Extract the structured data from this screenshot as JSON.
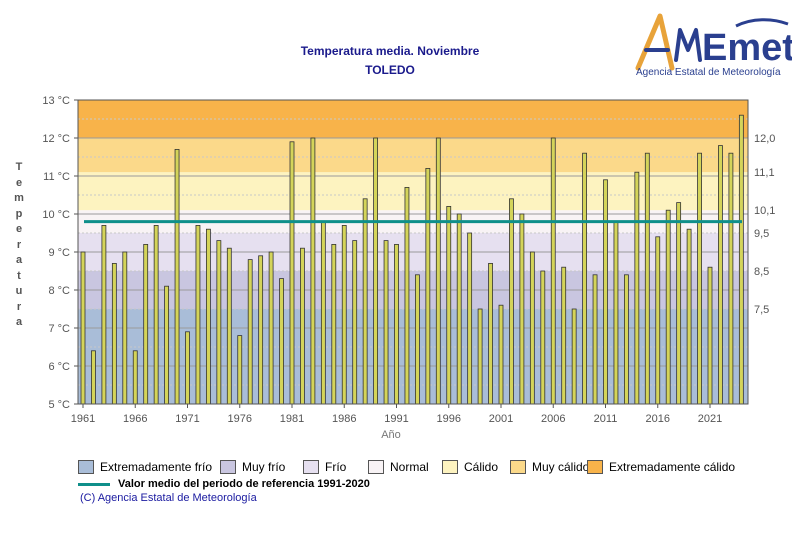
{
  "header": {
    "title": "Temperatura media. Noviembre",
    "subtitle": "TOLEDO"
  },
  "logo": {
    "wordmark": "AEmet",
    "agency_name": "Agencia Estatal de Meteorología"
  },
  "chart_data": {
    "type": "bar",
    "title": "Temperatura media. Noviembre",
    "subtitle": "TOLEDO",
    "xlabel": "Año",
    "ylabel": "Temperatura",
    "ylim": [
      5,
      13
    ],
    "xlim": [
      1961,
      2024
    ],
    "yticks": [
      "5 °C",
      "6 °C",
      "7 °C",
      "8 °C",
      "9 °C",
      "10 °C",
      "11 °C",
      "12 °C",
      "13 °C"
    ],
    "xticks": [
      "1961",
      "1966",
      "1971",
      "1976",
      "1981",
      "1986",
      "1991",
      "1996",
      "2001",
      "2006",
      "2011",
      "2016",
      "2021"
    ],
    "right_axis_ticks": [
      {
        "value": 12.0,
        "label": "12,0"
      },
      {
        "value": 11.1,
        "label": "11,1"
      },
      {
        "value": 10.1,
        "label": "10,1"
      },
      {
        "value": 9.5,
        "label": "9,5"
      },
      {
        "value": 8.5,
        "label": "8,5"
      },
      {
        "value": 7.5,
        "label": "7,5"
      }
    ],
    "categories": [
      1961,
      1962,
      1963,
      1964,
      1965,
      1966,
      1967,
      1968,
      1969,
      1970,
      1971,
      1972,
      1973,
      1974,
      1975,
      1976,
      1977,
      1978,
      1979,
      1980,
      1981,
      1982,
      1983,
      1984,
      1985,
      1986,
      1987,
      1988,
      1989,
      1990,
      1991,
      1992,
      1993,
      1994,
      1995,
      1996,
      1997,
      1998,
      1999,
      2000,
      2001,
      2002,
      2003,
      2004,
      2005,
      2006,
      2007,
      2008,
      2009,
      2010,
      2011,
      2012,
      2013,
      2014,
      2015,
      2016,
      2017,
      2018,
      2019,
      2020,
      2021,
      2022,
      2023,
      2024
    ],
    "values": [
      9.0,
      6.4,
      9.7,
      8.7,
      9.0,
      6.4,
      9.2,
      9.7,
      8.1,
      11.7,
      6.9,
      9.7,
      9.6,
      9.3,
      9.1,
      6.8,
      8.8,
      8.9,
      9.0,
      8.3,
      11.9,
      9.1,
      12.0,
      9.8,
      9.2,
      9.7,
      9.3,
      10.4,
      12.0,
      9.3,
      9.2,
      10.7,
      8.4,
      11.2,
      12.0,
      10.2,
      10.0,
      9.5,
      7.5,
      8.7,
      7.6,
      10.4,
      10.0,
      9.0,
      8.5,
      12.0,
      8.6,
      7.5,
      11.6,
      8.4,
      10.9,
      9.8,
      8.4,
      11.1,
      11.6,
      9.4,
      10.1,
      10.3,
      9.6,
      11.6,
      8.6,
      11.8,
      11.6,
      12.6
    ],
    "reference_mean": 9.8,
    "bands": [
      {
        "name": "Extremadamente frío",
        "from": 5.0,
        "to": 7.5,
        "color": "#a9bdd8"
      },
      {
        "name": "Muy frío",
        "from": 7.5,
        "to": 8.5,
        "color": "#c9c6e0"
      },
      {
        "name": "Frío",
        "from": 8.5,
        "to": 9.5,
        "color": "#e6e0f0"
      },
      {
        "name": "Normal",
        "from": 9.5,
        "to": 10.1,
        "color": "#f8f3f5"
      },
      {
        "name": "Cálido",
        "from": 10.1,
        "to": 11.1,
        "color": "#fdf3c0"
      },
      {
        "name": "Muy cálido",
        "from": 11.1,
        "to": 12.0,
        "color": "#fbd98a"
      },
      {
        "name": "Extremadamente cálido",
        "from": 12.0,
        "to": 13.0,
        "color": "#f8b34a"
      }
    ],
    "bar_color": "#d4d45a",
    "mean_line_color": "#0f8f8a",
    "grid": true
  },
  "legend": {
    "items": [
      {
        "label": "Extremadamente frío",
        "color": "#a9bdd8"
      },
      {
        "label": "Muy frío",
        "color": "#c9c6e0"
      },
      {
        "label": "Frío",
        "color": "#e6e0f0"
      },
      {
        "label": "Normal",
        "color": "#f8f3f5"
      },
      {
        "label": "Cálido",
        "color": "#fdf3c0"
      },
      {
        "label": "Muy cálido",
        "color": "#fbd98a"
      },
      {
        "label": "Extremadamente cálido",
        "color": "#f8b34a"
      }
    ],
    "mean_label": "Valor medio del periodo de referencia 1991-2020"
  },
  "footer": {
    "copyright": "(C) Agencia Estatal de Meteorología"
  }
}
